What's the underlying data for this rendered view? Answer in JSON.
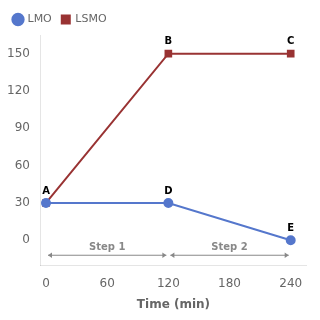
{
  "chart_data": {
    "type": "line",
    "xlabel": "Time (min)",
    "x": [
      0,
      120,
      240
    ],
    "series": [
      {
        "name": "LMO",
        "color": "#5577cc",
        "marker": "o",
        "values": [
          30,
          30,
          0
        ]
      },
      {
        "name": "LSMO",
        "color": "#993333",
        "marker": "s",
        "values": [
          30,
          150,
          150
        ]
      }
    ],
    "xlim": [
      -5,
      255
    ],
    "ylim": [
      -20,
      165
    ],
    "xticks": [
      0,
      60,
      120,
      180,
      240
    ],
    "yticks": [
      0,
      30,
      60,
      90,
      120,
      150
    ],
    "grid": false,
    "legend": "upper left",
    "annotations": [
      {
        "text": "A",
        "x": 0,
        "y": 30
      },
      {
        "text": "B",
        "x": 120,
        "y": 150
      },
      {
        "text": "C",
        "x": 240,
        "y": 150
      },
      {
        "text": "D",
        "x": 120,
        "y": 30
      },
      {
        "text": "E",
        "x": 240,
        "y": 0
      },
      {
        "text": "Step 1",
        "x": [
          0,
          120
        ],
        "y": -12
      },
      {
        "text": "Step 2",
        "x": [
          120,
          240
        ],
        "y": -12
      }
    ]
  }
}
